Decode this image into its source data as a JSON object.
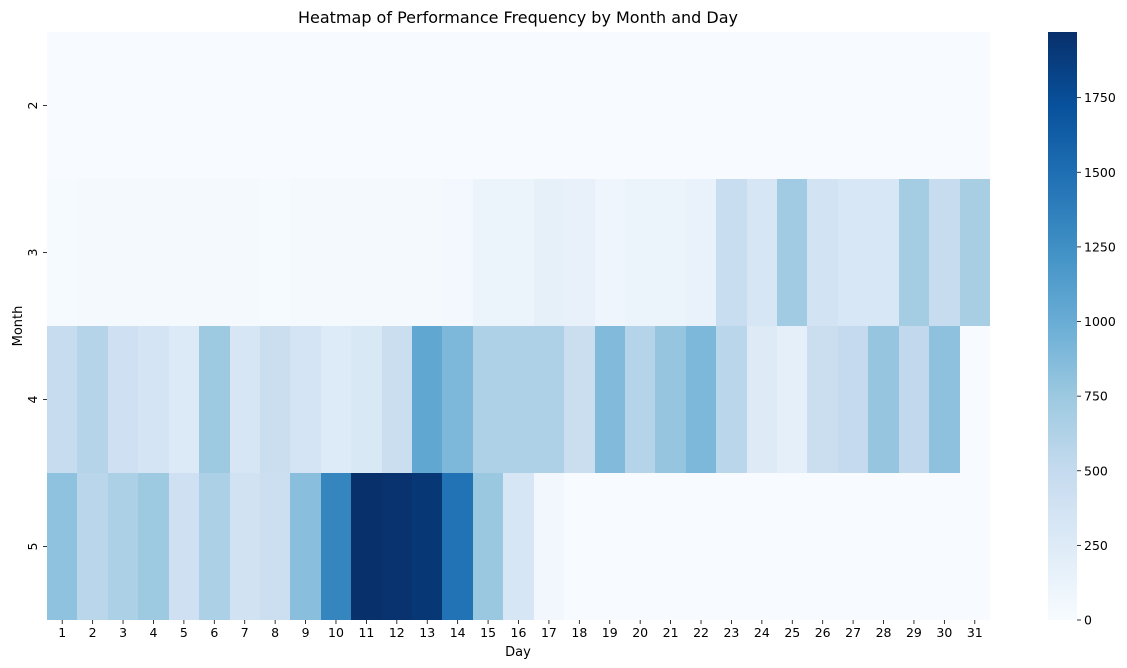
{
  "chart_data": {
    "type": "heatmap",
    "title": "Heatmap of Performance Frequency by Month and Day",
    "xlabel": "Day",
    "ylabel": "Month",
    "x_categories": [
      "1",
      "2",
      "3",
      "4",
      "5",
      "6",
      "7",
      "8",
      "9",
      "10",
      "11",
      "12",
      "13",
      "14",
      "15",
      "16",
      "17",
      "18",
      "19",
      "20",
      "21",
      "22",
      "23",
      "24",
      "25",
      "26",
      "27",
      "28",
      "29",
      "30",
      "31"
    ],
    "y_categories": [
      "2",
      "3",
      "4",
      "5"
    ],
    "values": [
      [
        0,
        0,
        0,
        0,
        0,
        0,
        0,
        0,
        0,
        0,
        0,
        0,
        0,
        0,
        0,
        0,
        0,
        0,
        0,
        0,
        0,
        0,
        0,
        0,
        0,
        0,
        0,
        0,
        0,
        0,
        0
      ],
      [
        20,
        25,
        25,
        30,
        30,
        30,
        30,
        20,
        25,
        25,
        25,
        25,
        25,
        50,
        120,
        120,
        170,
        150,
        90,
        110,
        110,
        140,
        460,
        330,
        720,
        370,
        310,
        310,
        700,
        480,
        680
      ],
      [
        470,
        590,
        410,
        350,
        270,
        740,
        330,
        450,
        350,
        260,
        300,
        450,
        1050,
        900,
        640,
        640,
        640,
        450,
        880,
        600,
        780,
        900,
        570,
        250,
        190,
        450,
        500,
        780,
        520,
        820,
        0
      ],
      [
        810,
        570,
        650,
        740,
        410,
        650,
        380,
        430,
        840,
        1330,
        1970,
        1950,
        1920,
        1470,
        760,
        330,
        60,
        0,
        0,
        0,
        0,
        0,
        0,
        0,
        0,
        0,
        0,
        0,
        0,
        0,
        0
      ]
    ],
    "colorbar": {
      "min": 0,
      "max": 1970,
      "ticks": [
        0,
        250,
        500,
        750,
        1000,
        1250,
        1500,
        1750
      ],
      "colormap": "Blues"
    },
    "grid": false
  }
}
